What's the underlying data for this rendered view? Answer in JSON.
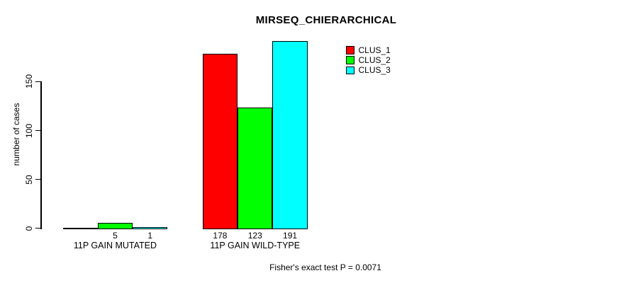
{
  "title": "MIRSEQ_CHIERARCHICAL",
  "y_axis": {
    "label": "number of cases",
    "tick_labels": [
      "0",
      "50",
      "100",
      "150"
    ]
  },
  "x_groups": [
    "11P GAIN MUTATED",
    "11P GAIN WILD-TYPE"
  ],
  "legend": {
    "items": [
      {
        "label": "CLUS_1",
        "color": "#FF0000"
      },
      {
        "label": "CLUS_2",
        "color": "#00FF00"
      },
      {
        "label": "CLUS_3",
        "color": "#00FFFF"
      }
    ]
  },
  "footer": "Fisher's exact test P = 0.0071",
  "colors": {
    "clus_1": "#FF0000",
    "clus_2": "#00FF00",
    "clus_3": "#00FFFF",
    "axis": "#000000",
    "background": "#FFFFFF"
  },
  "chart_data": {
    "type": "bar",
    "title": "MIRSEQ_CHIERARCHICAL",
    "xlabel": "",
    "ylabel": "number of cases",
    "categories": [
      "11P GAIN MUTATED",
      "11P GAIN WILD-TYPE"
    ],
    "series": [
      {
        "name": "CLUS_1",
        "color": "#FF0000",
        "values": [
          0,
          178
        ]
      },
      {
        "name": "CLUS_2",
        "color": "#00FF00",
        "values": [
          5,
          123
        ]
      },
      {
        "name": "CLUS_3",
        "color": "#00FFFF",
        "values": [
          1,
          191
        ]
      }
    ],
    "value_labels": [
      [
        "",
        "5",
        "1"
      ],
      [
        "178",
        "123",
        "191"
      ]
    ],
    "yticks": [
      0,
      50,
      100,
      150
    ],
    "ylim": [
      0,
      191
    ],
    "grid": false,
    "legend_position": "top-right",
    "legend_entries": [
      "CLUS_1",
      "CLUS_2",
      "CLUS_3"
    ],
    "annotation": "Fisher's exact test P = 0.0071"
  }
}
